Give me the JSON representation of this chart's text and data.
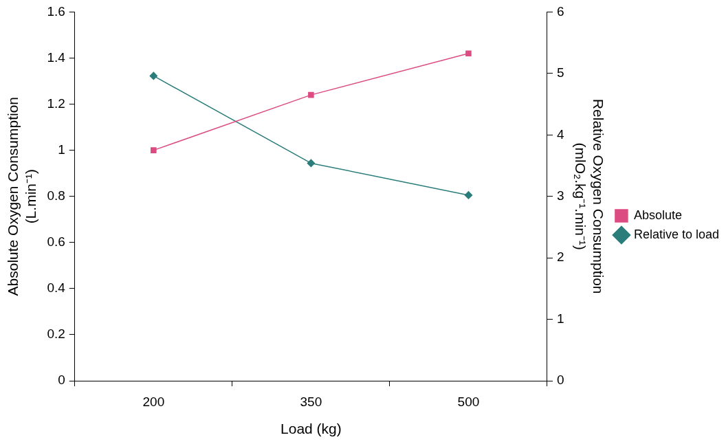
{
  "chart_data": {
    "type": "line",
    "xlabel": "Load (kg)",
    "ylabel": "Absolute Oxygen Consumption\n(L.min⁻¹)",
    "y2label": "Relative Oxygen Consumption\n(mlO₂.kg⁻¹.min⁻¹)",
    "categories": [
      "200",
      "350",
      "500"
    ],
    "series": [
      {
        "name": "Absolute",
        "color": "#dc4c82",
        "marker": "square",
        "values": [
          1.0,
          1.24,
          1.42
        ]
      },
      {
        "name": "Relative to load",
        "color": "#2a7d7a",
        "marker": "diamond",
        "axis": "y2",
        "values": [
          4.96,
          3.54,
          3.02
        ]
      }
    ],
    "ylim": [
      0,
      1.6
    ],
    "yticks": [
      0,
      0.2,
      0.4,
      0.6,
      0.8,
      1,
      1.2,
      1.4,
      1.6
    ],
    "y2lim": [
      0,
      6
    ],
    "y2ticks": [
      0,
      1,
      2,
      3,
      4,
      5,
      6
    ],
    "grid": false,
    "legend": "right"
  }
}
